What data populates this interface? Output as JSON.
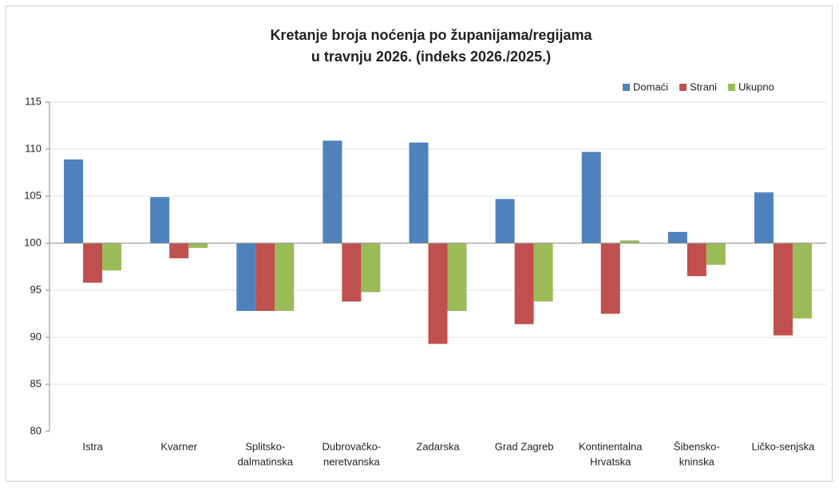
{
  "chart_data": {
    "type": "bar",
    "title": [
      "Kretanje broja noćenja po županijama/regijama",
      "u travnju 2026.  (indeks 2026./2025.)"
    ],
    "categories": [
      "Istra",
      "Kvarner",
      [
        "Splitsko-",
        "dalmatinska"
      ],
      [
        "Dubrovačko-",
        "neretvanska"
      ],
      "Zadarska",
      "Grad Zagreb",
      [
        "Kontinentalna",
        "Hrvatska"
      ],
      [
        "Šibensko-",
        "kninska"
      ],
      "Ličko-senjska"
    ],
    "series": [
      {
        "name": "Domaći",
        "color": "#4f81bd",
        "values": [
          108.9,
          104.9,
          92.8,
          110.9,
          110.7,
          104.7,
          109.7,
          101.2,
          105.4
        ]
      },
      {
        "name": "Strani",
        "color": "#c0504d",
        "values": [
          95.8,
          98.4,
          92.8,
          93.8,
          89.3,
          91.4,
          92.5,
          96.5,
          90.2
        ]
      },
      {
        "name": "Ukupno",
        "color": "#9bbb59",
        "values": [
          97.1,
          99.5,
          92.8,
          94.8,
          92.8,
          93.8,
          100.3,
          97.7,
          92.0
        ]
      }
    ],
    "baseline": 100,
    "ylim": [
      80,
      115
    ],
    "yticks": [
      80,
      85,
      90,
      95,
      100,
      105,
      110,
      115
    ],
    "grid": true,
    "legend": "top-right"
  }
}
